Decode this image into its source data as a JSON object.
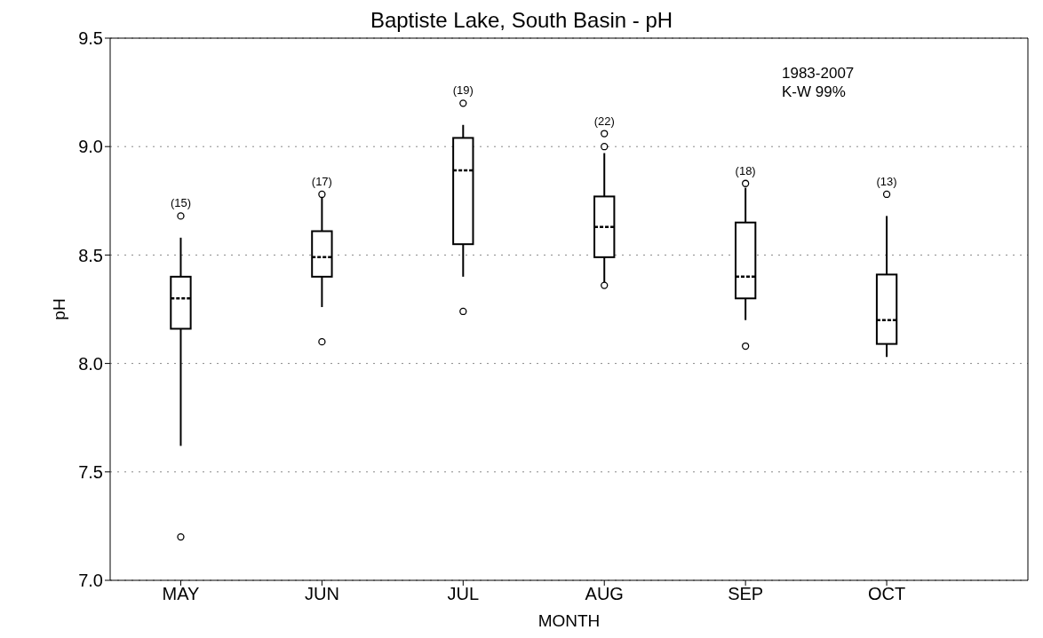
{
  "chart_data": {
    "type": "box",
    "title": "Baptiste Lake, South Basin - pH",
    "xlabel": "MONTH",
    "ylabel": "pH",
    "categories": [
      "MAY",
      "JUN",
      "JUL",
      "AUG",
      "SEP",
      "OCT"
    ],
    "boxes": [
      {
        "low": 7.62,
        "q1": 8.16,
        "median": 8.3,
        "q3": 8.4,
        "high": 8.58,
        "outliers": [
          8.68,
          7.2
        ]
      },
      {
        "low": 8.26,
        "q1": 8.4,
        "median": 8.49,
        "q3": 8.61,
        "high": 8.77,
        "outliers": [
          8.78,
          8.1
        ]
      },
      {
        "low": 8.4,
        "q1": 8.55,
        "median": 8.89,
        "q3": 9.04,
        "high": 9.1,
        "outliers": [
          9.2,
          8.24
        ]
      },
      {
        "low": 8.37,
        "q1": 8.49,
        "median": 8.63,
        "q3": 8.77,
        "high": 8.97,
        "outliers": [
          9.06,
          9.0,
          8.36
        ]
      },
      {
        "low": 8.2,
        "q1": 8.3,
        "median": 8.4,
        "q3": 8.65,
        "high": 8.81,
        "outliers": [
          8.83,
          8.08
        ]
      },
      {
        "low": 8.03,
        "q1": 8.09,
        "median": 8.2,
        "q3": 8.41,
        "high": 8.68,
        "outliers": [
          8.78
        ]
      }
    ],
    "ylim": [
      7.0,
      9.5
    ],
    "yticks": [
      {
        "value": 7,
        "label": "7.0"
      },
      {
        "value": 7.5,
        "label": "7.5"
      },
      {
        "value": 8,
        "label": "8.0"
      },
      {
        "value": 8.5,
        "label": "8.5"
      },
      {
        "value": 9,
        "label": "9.0"
      },
      {
        "value": 9.5,
        "label": "9.5"
      }
    ],
    "grid": "y",
    "legend": false,
    "annotations": [
      "(15)",
      "(17)",
      "(19)",
      "(22)",
      "(18)",
      "(13)",
      "1983-2007",
      "K-W 99%"
    ]
  }
}
